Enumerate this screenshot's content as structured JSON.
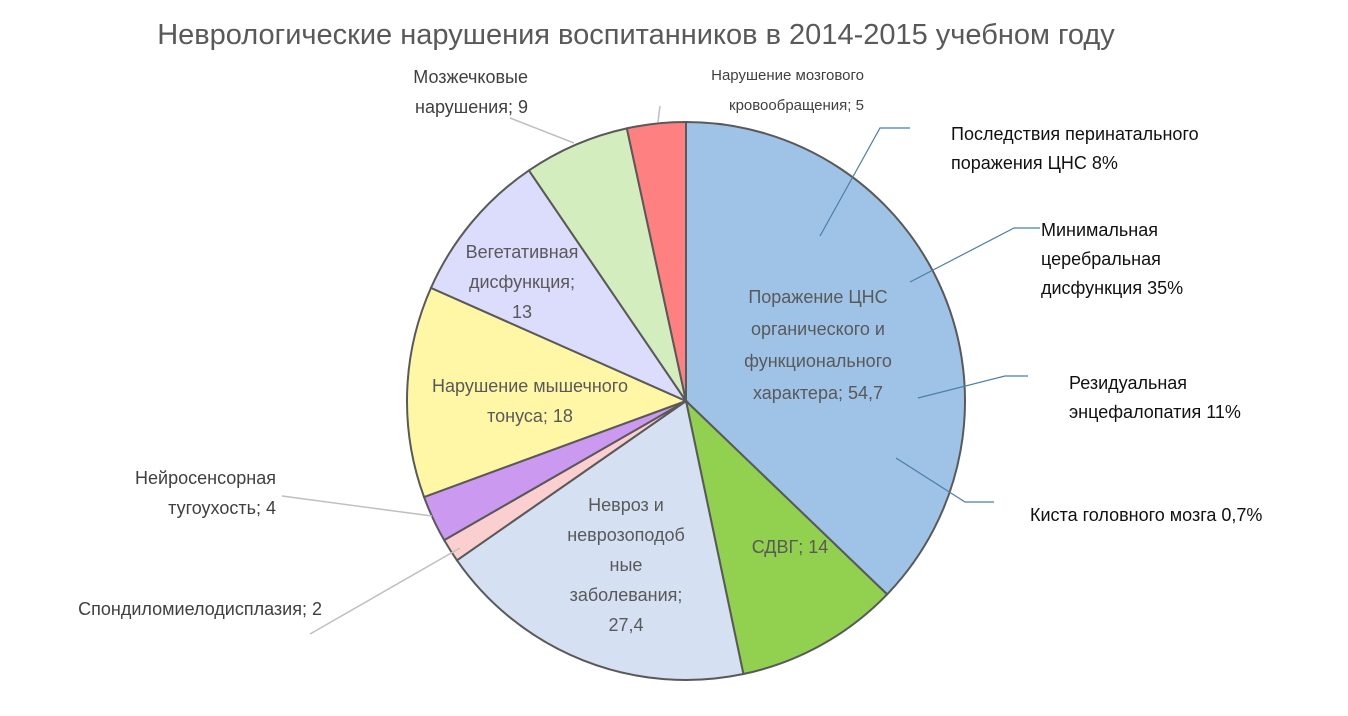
{
  "chart_data": {
    "type": "pie",
    "title": "Неврологические нарушения воспитанников в 2014-2015 учебном году",
    "slices": [
      {
        "label": "Поражение ЦНС органического и функционального характера; 54,7",
        "value": 54.7,
        "color": "#9fc3e6"
      },
      {
        "label": "СДВГ; 14",
        "value": 14,
        "color": "#92d050"
      },
      {
        "label": "Невроз и неврозоподоб ные заболевания; 27,4",
        "value": 27.4,
        "color": "#d5e1f2"
      },
      {
        "label": "Спондиломиелодисплазия; 2",
        "value": 2,
        "color": "#fbcfd0"
      },
      {
        "label": "Нейросенсорная тугоухость; 4",
        "value": 4,
        "color": "#cc99f0"
      },
      {
        "label": "Нарушение мышечного тонуса; 18",
        "value": 18,
        "color": "#fff6a6"
      },
      {
        "label": "Вегетативная дисфункция; 13",
        "value": 13,
        "color": "#dcdcfc"
      },
      {
        "label": "Мозжечковые нарушения; 9",
        "value": 9,
        "color": "#d4edbf"
      },
      {
        "label": "Нарушение мозгового кровообращения; 5",
        "value": 5,
        "color": "#ff8080"
      }
    ],
    "callouts": [
      {
        "text": "Последствия перинатального поражения ЦНС 8%"
      },
      {
        "text": "Минимальная церебральная дисфункция 35%"
      },
      {
        "text": "Резидуальная энцефалопатия 11%"
      },
      {
        "text": "Киста головного мозга 0,7%"
      }
    ]
  }
}
